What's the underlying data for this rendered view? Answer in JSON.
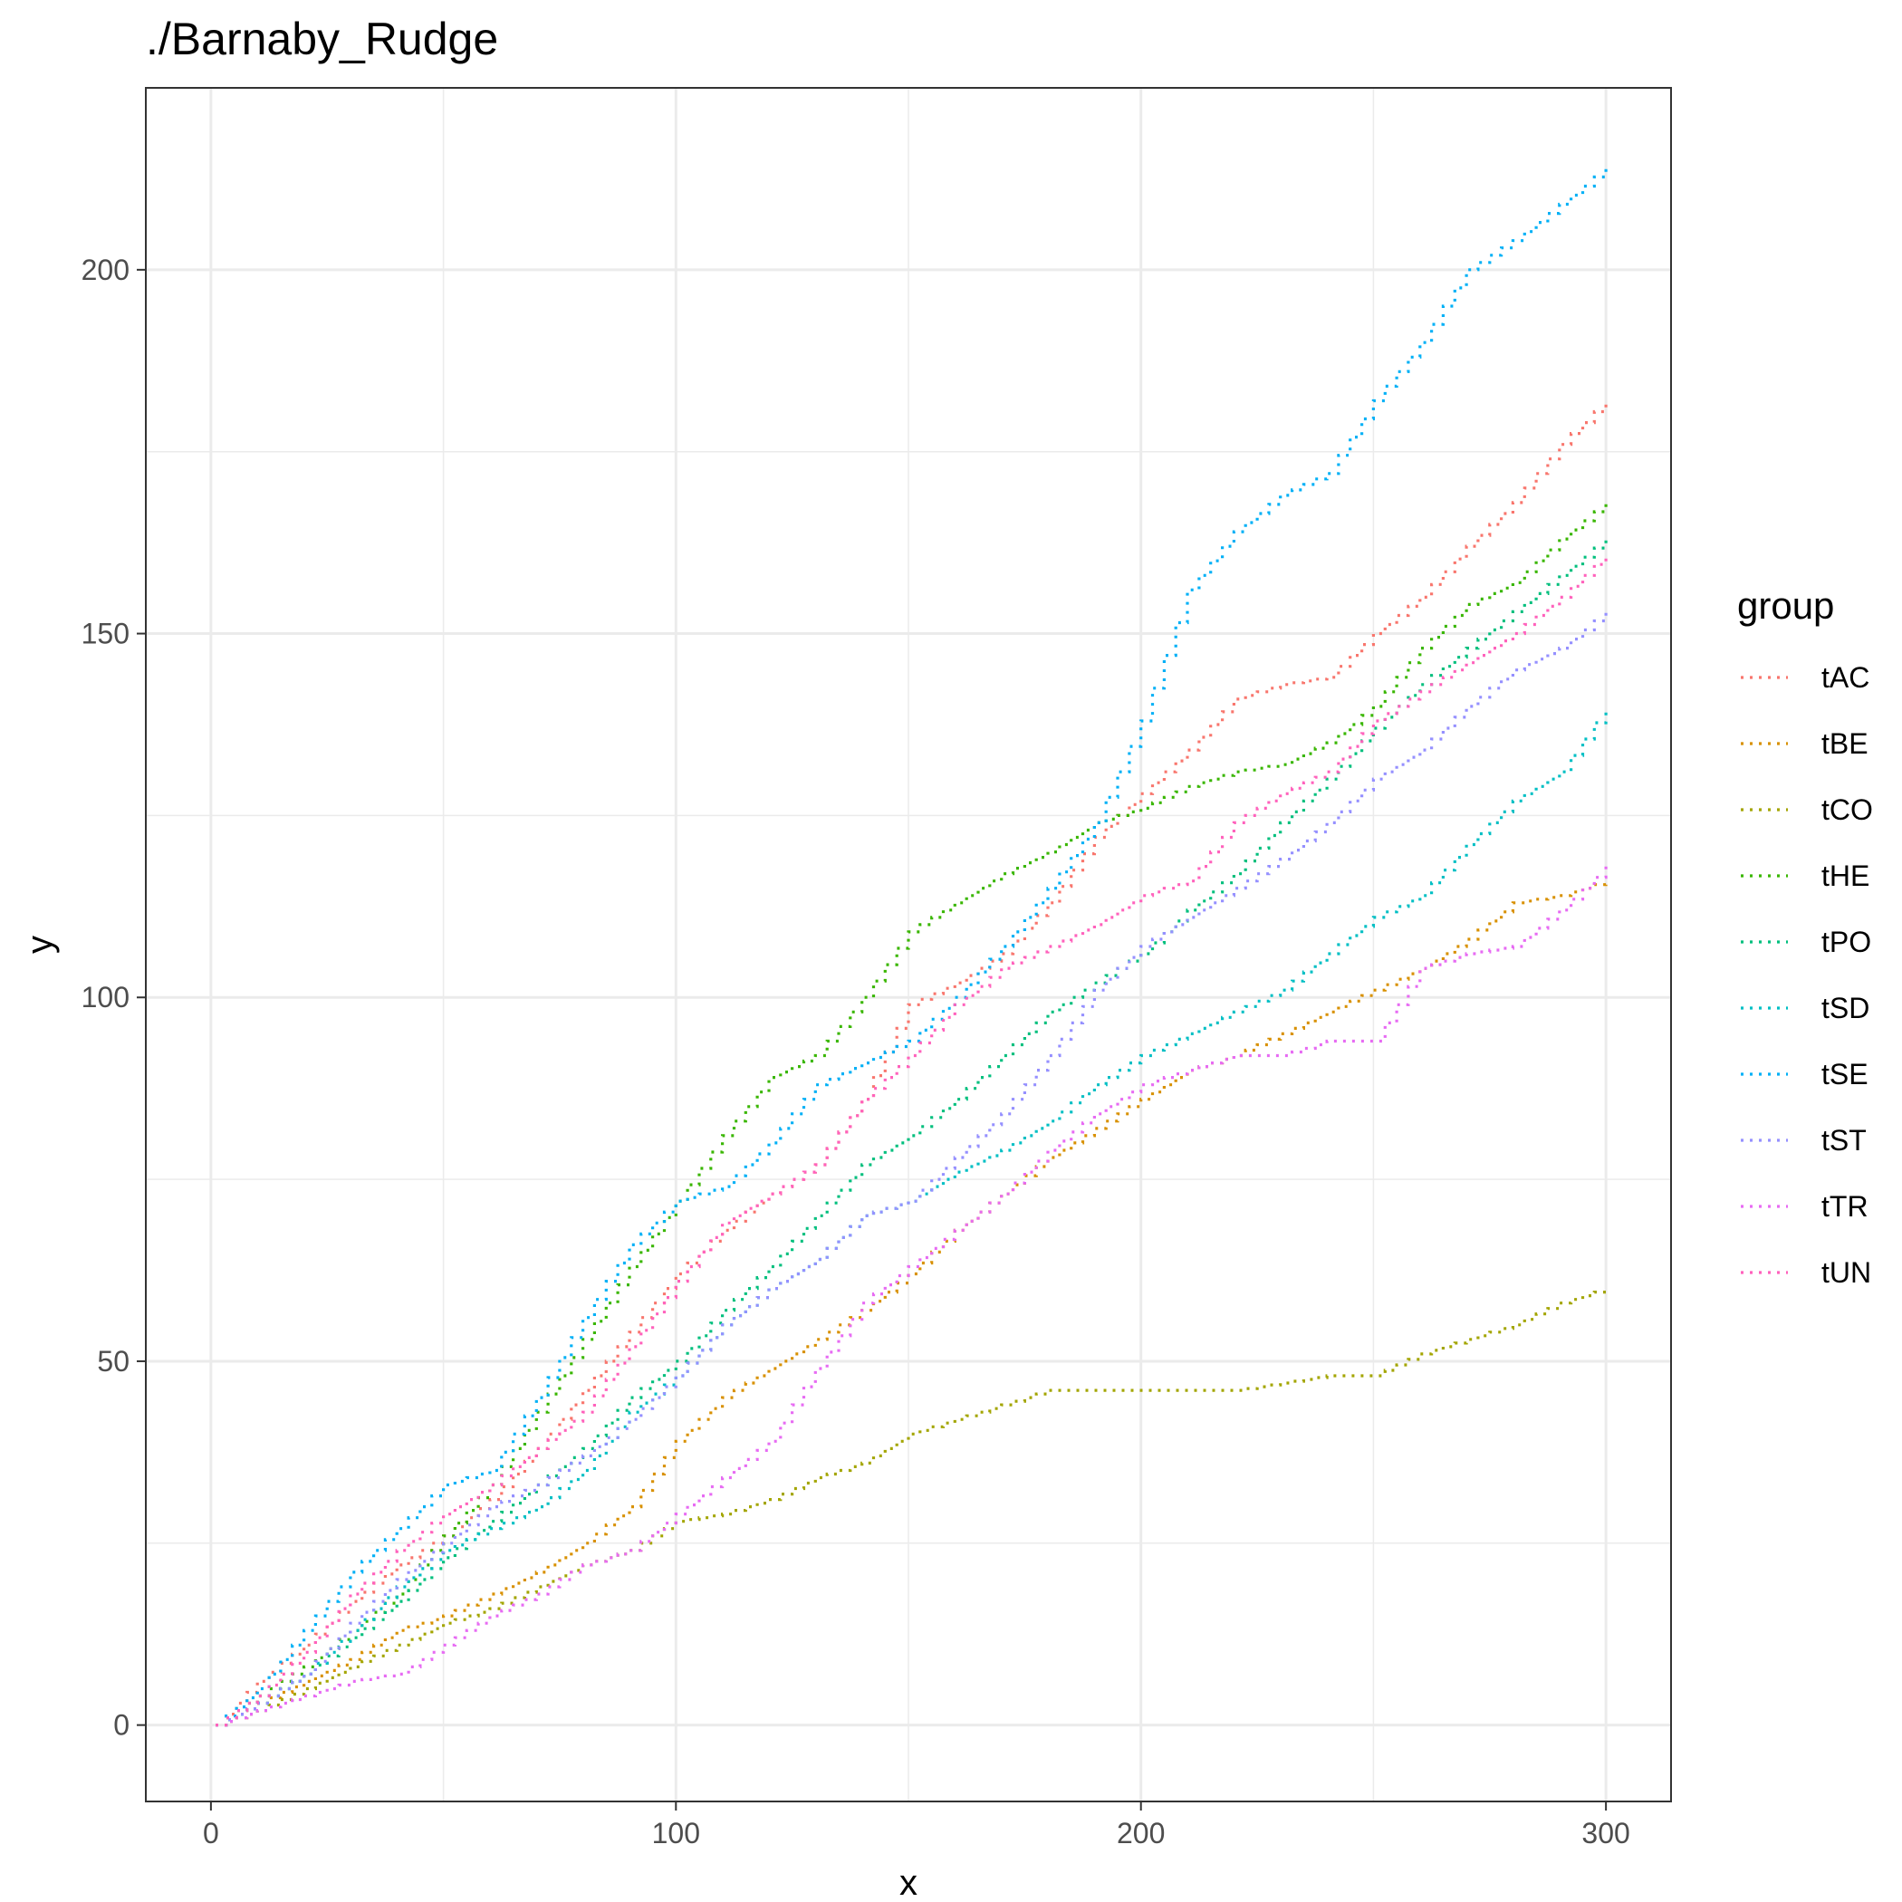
{
  "chart_data": {
    "type": "line",
    "title": "./Barnaby_Rudge",
    "xlabel": "x",
    "ylabel": "y",
    "xlim": [
      -14,
      314
    ],
    "ylim": [
      -10.5,
      225
    ],
    "x_ticks": [
      0,
      100,
      200,
      300
    ],
    "y_ticks": [
      0,
      50,
      100,
      150,
      200
    ],
    "x_tick_labels": [
      "0",
      "100",
      "200",
      "300"
    ],
    "y_tick_labels": [
      "0",
      "50",
      "100",
      "150",
      "200"
    ],
    "grid": true,
    "line_style": "dotted",
    "legend": {
      "title": "group",
      "position": "right"
    },
    "series": [
      {
        "name": "tAC",
        "color": "#F8766D",
        "points": [
          [
            1,
            0
          ],
          [
            10,
            6
          ],
          [
            20,
            11
          ],
          [
            30,
            17
          ],
          [
            40,
            22
          ],
          [
            50,
            26
          ],
          [
            60,
            31
          ],
          [
            70,
            38
          ],
          [
            80,
            46
          ],
          [
            90,
            54
          ],
          [
            100,
            62
          ],
          [
            110,
            68
          ],
          [
            120,
            73
          ],
          [
            130,
            77
          ],
          [
            140,
            86
          ],
          [
            150,
            99
          ],
          [
            160,
            102
          ],
          [
            170,
            106
          ],
          [
            180,
            113
          ],
          [
            190,
            122
          ],
          [
            200,
            128
          ],
          [
            210,
            134
          ],
          [
            220,
            141
          ],
          [
            230,
            143
          ],
          [
            240,
            144
          ],
          [
            250,
            150
          ],
          [
            260,
            155
          ],
          [
            270,
            162
          ],
          [
            280,
            168
          ],
          [
            290,
            176
          ],
          [
            300,
            182
          ]
        ]
      },
      {
        "name": "tBE",
        "color": "#D89000",
        "points": [
          [
            1,
            0
          ],
          [
            10,
            3
          ],
          [
            20,
            6
          ],
          [
            30,
            9
          ],
          [
            40,
            13
          ],
          [
            50,
            15
          ],
          [
            60,
            18
          ],
          [
            70,
            21
          ],
          [
            80,
            25
          ],
          [
            90,
            30
          ],
          [
            100,
            39
          ],
          [
            110,
            45
          ],
          [
            120,
            49
          ],
          [
            130,
            53
          ],
          [
            140,
            57
          ],
          [
            150,
            62
          ],
          [
            160,
            68
          ],
          [
            170,
            73
          ],
          [
            180,
            78
          ],
          [
            190,
            82
          ],
          [
            200,
            86
          ],
          [
            210,
            90
          ],
          [
            220,
            92
          ],
          [
            230,
            95
          ],
          [
            240,
            98
          ],
          [
            250,
            101
          ],
          [
            260,
            104
          ],
          [
            270,
            108
          ],
          [
            280,
            113
          ],
          [
            290,
            114
          ],
          [
            300,
            116
          ]
        ]
      },
      {
        "name": "tCO",
        "color": "#A3A500",
        "points": [
          [
            1,
            0
          ],
          [
            10,
            2
          ],
          [
            20,
            5
          ],
          [
            30,
            8
          ],
          [
            40,
            11
          ],
          [
            50,
            14
          ],
          [
            60,
            16
          ],
          [
            70,
            19
          ],
          [
            80,
            22
          ],
          [
            90,
            24
          ],
          [
            100,
            28
          ],
          [
            110,
            29
          ],
          [
            120,
            31
          ],
          [
            130,
            34
          ],
          [
            140,
            36
          ],
          [
            150,
            40
          ],
          [
            160,
            42
          ],
          [
            170,
            44
          ],
          [
            180,
            46
          ],
          [
            190,
            46
          ],
          [
            200,
            46
          ],
          [
            210,
            46
          ],
          [
            220,
            46
          ],
          [
            230,
            47
          ],
          [
            240,
            48
          ],
          [
            250,
            48
          ],
          [
            260,
            51
          ],
          [
            270,
            53
          ],
          [
            280,
            55
          ],
          [
            290,
            58
          ],
          [
            300,
            60
          ]
        ]
      },
      {
        "name": "tHE",
        "color": "#39B600",
        "points": [
          [
            1,
            0
          ],
          [
            10,
            4
          ],
          [
            20,
            8
          ],
          [
            30,
            13
          ],
          [
            40,
            18
          ],
          [
            50,
            26
          ],
          [
            60,
            33
          ],
          [
            70,
            43
          ],
          [
            80,
            53
          ],
          [
            90,
            63
          ],
          [
            100,
            72
          ],
          [
            110,
            81
          ],
          [
            120,
            89
          ],
          [
            130,
            92
          ],
          [
            140,
            100
          ],
          [
            150,
            109
          ],
          [
            160,
            113
          ],
          [
            170,
            117
          ],
          [
            180,
            120
          ],
          [
            190,
            124
          ],
          [
            200,
            126
          ],
          [
            210,
            129
          ],
          [
            220,
            131
          ],
          [
            230,
            132
          ],
          [
            240,
            135
          ],
          [
            250,
            140
          ],
          [
            260,
            148
          ],
          [
            270,
            154
          ],
          [
            280,
            157
          ],
          [
            290,
            163
          ],
          [
            300,
            168
          ]
        ]
      },
      {
        "name": "tPO",
        "color": "#00BF7D",
        "points": [
          [
            1,
            0
          ],
          [
            10,
            3
          ],
          [
            20,
            7
          ],
          [
            30,
            12
          ],
          [
            40,
            17
          ],
          [
            50,
            23
          ],
          [
            60,
            28
          ],
          [
            70,
            33
          ],
          [
            80,
            38
          ],
          [
            90,
            45
          ],
          [
            100,
            50
          ],
          [
            110,
            57
          ],
          [
            120,
            63
          ],
          [
            130,
            70
          ],
          [
            140,
            77
          ],
          [
            150,
            81
          ],
          [
            160,
            86
          ],
          [
            170,
            92
          ],
          [
            180,
            98
          ],
          [
            190,
            102
          ],
          [
            200,
            106
          ],
          [
            210,
            112
          ],
          [
            220,
            117
          ],
          [
            230,
            124
          ],
          [
            240,
            130
          ],
          [
            250,
            137
          ],
          [
            260,
            143
          ],
          [
            270,
            148
          ],
          [
            280,
            153
          ],
          [
            290,
            158
          ],
          [
            300,
            163
          ]
        ]
      },
      {
        "name": "tSD",
        "color": "#00BFC4",
        "points": [
          [
            1,
            0
          ],
          [
            10,
            3
          ],
          [
            20,
            7
          ],
          [
            30,
            13
          ],
          [
            40,
            19
          ],
          [
            50,
            24
          ],
          [
            60,
            27
          ],
          [
            70,
            30
          ],
          [
            80,
            35
          ],
          [
            90,
            43
          ],
          [
            100,
            48
          ],
          [
            110,
            55
          ],
          [
            120,
            60
          ],
          [
            130,
            64
          ],
          [
            140,
            70
          ],
          [
            150,
            72
          ],
          [
            160,
            76
          ],
          [
            170,
            79
          ],
          [
            180,
            83
          ],
          [
            190,
            88
          ],
          [
            200,
            92
          ],
          [
            210,
            95
          ],
          [
            220,
            98
          ],
          [
            230,
            101
          ],
          [
            240,
            106
          ],
          [
            250,
            111
          ],
          [
            260,
            114
          ],
          [
            270,
            121
          ],
          [
            280,
            127
          ],
          [
            290,
            131
          ],
          [
            300,
            140
          ]
        ]
      },
      {
        "name": "tSE",
        "color": "#00B0F6",
        "points": [
          [
            1,
            0
          ],
          [
            10,
            5
          ],
          [
            20,
            13
          ],
          [
            30,
            21
          ],
          [
            40,
            27
          ],
          [
            50,
            33
          ],
          [
            60,
            35
          ],
          [
            70,
            45
          ],
          [
            80,
            56
          ],
          [
            90,
            66
          ],
          [
            100,
            72
          ],
          [
            110,
            74
          ],
          [
            120,
            80
          ],
          [
            130,
            88
          ],
          [
            140,
            91
          ],
          [
            150,
            94
          ],
          [
            160,
            100
          ],
          [
            170,
            107
          ],
          [
            180,
            115
          ],
          [
            190,
            124
          ],
          [
            200,
            138
          ],
          [
            210,
            156
          ],
          [
            220,
            164
          ],
          [
            230,
            169
          ],
          [
            240,
            172
          ],
          [
            250,
            182
          ],
          [
            260,
            190
          ],
          [
            270,
            200
          ],
          [
            280,
            204
          ],
          [
            290,
            209
          ],
          [
            300,
            214
          ]
        ]
      },
      {
        "name": "tST",
        "color": "#9590FF",
        "points": [
          [
            1,
            0
          ],
          [
            10,
            3
          ],
          [
            20,
            7
          ],
          [
            30,
            14
          ],
          [
            40,
            20
          ],
          [
            50,
            25
          ],
          [
            60,
            30
          ],
          [
            70,
            33
          ],
          [
            80,
            37
          ],
          [
            90,
            42
          ],
          [
            100,
            48
          ],
          [
            110,
            55
          ],
          [
            120,
            60
          ],
          [
            130,
            64
          ],
          [
            140,
            70
          ],
          [
            150,
            72
          ],
          [
            160,
            78
          ],
          [
            170,
            84
          ],
          [
            180,
            92
          ],
          [
            190,
            101
          ],
          [
            200,
            107
          ],
          [
            210,
            111
          ],
          [
            220,
            115
          ],
          [
            230,
            119
          ],
          [
            240,
            124
          ],
          [
            250,
            130
          ],
          [
            260,
            134
          ],
          [
            270,
            140
          ],
          [
            280,
            145
          ],
          [
            290,
            148
          ],
          [
            300,
            153
          ]
        ]
      },
      {
        "name": "tTR",
        "color": "#E76BF3",
        "points": [
          [
            1,
            0
          ],
          [
            10,
            2
          ],
          [
            20,
            4
          ],
          [
            30,
            6
          ],
          [
            40,
            7
          ],
          [
            50,
            11
          ],
          [
            60,
            15
          ],
          [
            70,
            18
          ],
          [
            80,
            22
          ],
          [
            90,
            24
          ],
          [
            100,
            29
          ],
          [
            110,
            34
          ],
          [
            120,
            39
          ],
          [
            130,
            49
          ],
          [
            140,
            58
          ],
          [
            150,
            63
          ],
          [
            160,
            68
          ],
          [
            170,
            73
          ],
          [
            180,
            79
          ],
          [
            190,
            84
          ],
          [
            200,
            88
          ],
          [
            210,
            90
          ],
          [
            220,
            92
          ],
          [
            230,
            92
          ],
          [
            240,
            94
          ],
          [
            250,
            94
          ],
          [
            260,
            104
          ],
          [
            270,
            106
          ],
          [
            280,
            107
          ],
          [
            290,
            112
          ],
          [
            300,
            118
          ]
        ]
      },
      {
        "name": "tUN",
        "color": "#FF62BC",
        "points": [
          [
            1,
            0
          ],
          [
            10,
            4
          ],
          [
            20,
            10
          ],
          [
            30,
            18
          ],
          [
            40,
            24
          ],
          [
            50,
            29
          ],
          [
            60,
            33
          ],
          [
            70,
            38
          ],
          [
            80,
            43
          ],
          [
            90,
            52
          ],
          [
            100,
            61
          ],
          [
            110,
            69
          ],
          [
            120,
            73
          ],
          [
            130,
            77
          ],
          [
            140,
            86
          ],
          [
            150,
            92
          ],
          [
            160,
            99
          ],
          [
            170,
            104
          ],
          [
            180,
            107
          ],
          [
            190,
            110
          ],
          [
            200,
            114
          ],
          [
            210,
            116
          ],
          [
            220,
            124
          ],
          [
            230,
            128
          ],
          [
            240,
            131
          ],
          [
            250,
            138
          ],
          [
            260,
            142
          ],
          [
            270,
            146
          ],
          [
            280,
            150
          ],
          [
            290,
            155
          ],
          [
            300,
            161
          ]
        ]
      }
    ]
  }
}
